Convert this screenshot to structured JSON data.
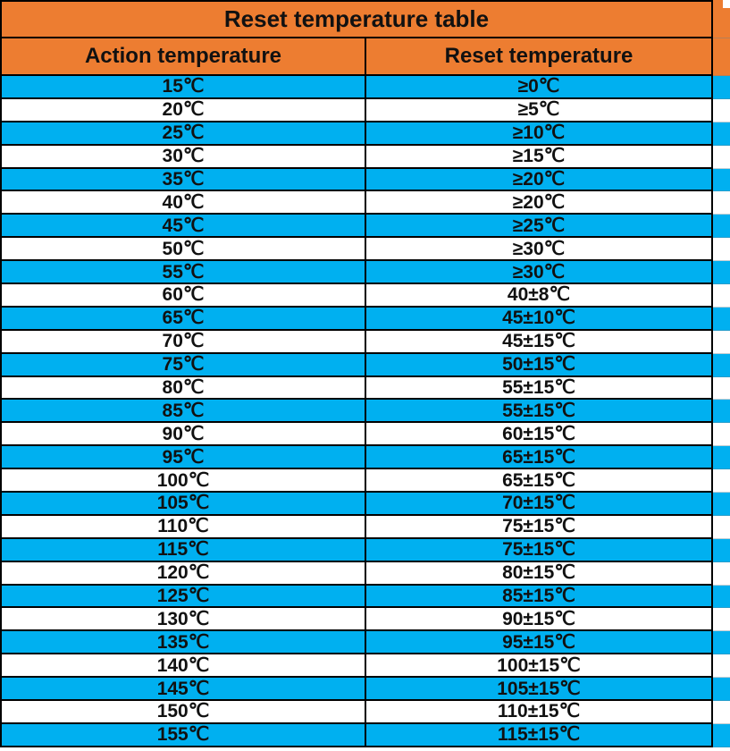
{
  "title": "Reset temperature table",
  "columns": [
    {
      "label": "Action temperature"
    },
    {
      "label": "Reset temperature"
    }
  ],
  "rows": [
    {
      "action": "15℃",
      "reset": "≥0℃"
    },
    {
      "action": "20℃",
      "reset": "≥5℃"
    },
    {
      "action": "25℃",
      "reset": "≥10℃"
    },
    {
      "action": "30℃",
      "reset": "≥15℃"
    },
    {
      "action": "35℃",
      "reset": "≥20℃"
    },
    {
      "action": "40℃",
      "reset": "≥20℃"
    },
    {
      "action": "45℃",
      "reset": "≥25℃"
    },
    {
      "action": "50℃",
      "reset": "≥30℃"
    },
    {
      "action": "55℃",
      "reset": "≥30℃"
    },
    {
      "action": "60℃",
      "reset": "40±8℃"
    },
    {
      "action": "65℃",
      "reset": "45±10℃"
    },
    {
      "action": "70℃",
      "reset": "45±15℃"
    },
    {
      "action": "75℃",
      "reset": "50±15℃"
    },
    {
      "action": "80℃",
      "reset": "55±15℃"
    },
    {
      "action": "85℃",
      "reset": "55±15℃"
    },
    {
      "action": "90℃",
      "reset": "60±15℃"
    },
    {
      "action": "95℃",
      "reset": "65±15℃"
    },
    {
      "action": "100℃",
      "reset": "65±15℃"
    },
    {
      "action": "105℃",
      "reset": "70±15℃"
    },
    {
      "action": "110℃",
      "reset": "75±15℃"
    },
    {
      "action": "115℃",
      "reset": "75±15℃"
    },
    {
      "action": "120℃",
      "reset": "80±15℃"
    },
    {
      "action": "125℃",
      "reset": "85±15℃"
    },
    {
      "action": "130℃",
      "reset": "90±15℃"
    },
    {
      "action": "135℃",
      "reset": "95±15℃"
    },
    {
      "action": "140℃",
      "reset": "100±15℃"
    },
    {
      "action": "145℃",
      "reset": "105±15℃"
    },
    {
      "action": "150℃",
      "reset": "110±15℃"
    },
    {
      "action": "155℃",
      "reset": "115±15℃"
    }
  ],
  "colors": {
    "header_bg": "#ED7D31",
    "row_alt_bg": "#00B0F0",
    "row_bg": "#FFFFFF",
    "border": "#000000",
    "text": "#111111"
  }
}
